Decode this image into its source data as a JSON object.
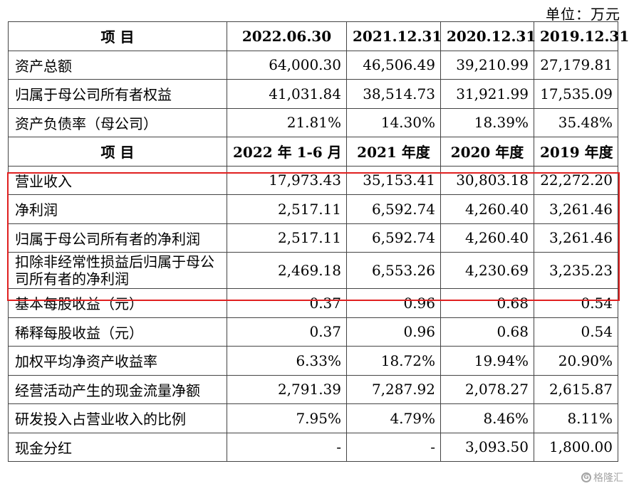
{
  "unit_label": "单位：万元",
  "header1": {
    "item": "项    目",
    "cols": [
      "2022.06.30",
      "2021.12.31",
      "2020.12.31",
      "2019.12.31"
    ]
  },
  "balance_rows": [
    {
      "label": "资产总额",
      "values": [
        "64,000.30",
        "46,506.49",
        "39,210.99",
        "27,179.81"
      ]
    },
    {
      "label": "归属于母公司所有者权益",
      "values": [
        "41,031.84",
        "38,514.73",
        "31,921.99",
        "17,535.09"
      ]
    },
    {
      "label": "资产负债率（母公司）",
      "values": [
        "21.81%",
        "14.30%",
        "18.39%",
        "35.48%"
      ]
    }
  ],
  "header2": {
    "item": "项    目",
    "cols": [
      "2022 年 1-6 月",
      "2021 年度",
      "2020 年度",
      "2019 年度"
    ]
  },
  "income_rows": [
    {
      "label": "营业收入",
      "values": [
        "17,973.43",
        "35,153.41",
        "30,803.18",
        "22,272.20"
      ]
    },
    {
      "label": "净利润",
      "values": [
        "2,517.11",
        "6,592.74",
        "4,260.40",
        "3,261.46"
      ]
    },
    {
      "label": "归属于母公司所有者的净利润",
      "values": [
        "2,517.11",
        "6,592.74",
        "4,260.40",
        "3,261.46"
      ]
    },
    {
      "label": "扣除非经常性损益后归属于母公司所有者的净利润",
      "values": [
        "2,469.18",
        "6,553.26",
        "4,230.69",
        "3,235.23"
      ]
    },
    {
      "label": "基本每股收益（元）",
      "values": [
        "0.37",
        "0.96",
        "0.68",
        "0.54"
      ]
    },
    {
      "label": "稀释每股收益（元）",
      "values": [
        "0.37",
        "0.96",
        "0.68",
        "0.54"
      ]
    },
    {
      "label": "加权平均净资产收益率",
      "values": [
        "6.33%",
        "18.72%",
        "19.94%",
        "20.90%"
      ]
    },
    {
      "label": "经营活动产生的现金流量净额",
      "values": [
        "2,791.39",
        "7,287.92",
        "2,078.27",
        "2,615.87"
      ]
    },
    {
      "label": "研发投入占营业收入的比例",
      "values": [
        "7.95%",
        "4.79%",
        "8.46%",
        "8.11%"
      ]
    },
    {
      "label": "现金分红",
      "values": [
        "-",
        "-",
        "3,093.50",
        "1,800.00"
      ]
    }
  ],
  "watermark": "格隆汇",
  "highlight_color": "#e02020"
}
